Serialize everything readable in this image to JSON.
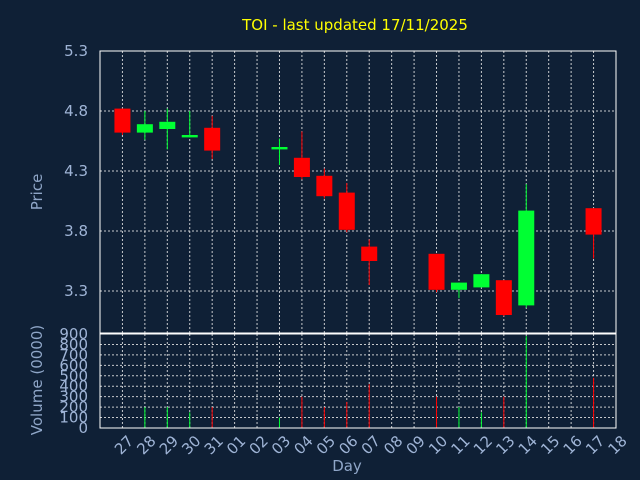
{
  "chart_data": {
    "type": "candlestick",
    "title": "TOI - last updated 17/11/2025",
    "xlabel": "Day",
    "ylabel": "Price",
    "volume_label": "Volume (0000)",
    "grid": true,
    "categories": [
      "27",
      "28",
      "29",
      "30",
      "31",
      "01",
      "02",
      "03",
      "04",
      "05",
      "06",
      "07",
      "08",
      "09",
      "10",
      "11",
      "12",
      "13",
      "14",
      "15",
      "16",
      "17",
      "18"
    ],
    "price_ticks": [
      "3.3",
      "3.8",
      "4.3",
      "4.8",
      "5.3"
    ],
    "price_range": [
      2.95,
      5.3
    ],
    "volume_ticks": [
      "0",
      "100",
      "200",
      "300",
      "400",
      "500",
      "600",
      "700",
      "800",
      "900"
    ],
    "volume_range": [
      0,
      900
    ],
    "colors": {
      "up": "#00ff33",
      "down": "#ff0000",
      "title": "#ffff00",
      "background": "#0f2036"
    },
    "candles": [
      {
        "x": "27",
        "open": 4.82,
        "close": 4.62,
        "high": 4.82,
        "low": 4.6,
        "volume": 0
      },
      {
        "x": "28",
        "open": 4.62,
        "close": 4.69,
        "high": 4.8,
        "low": 4.56,
        "volume": 200
      },
      {
        "x": "29",
        "open": 4.65,
        "close": 4.71,
        "high": 4.82,
        "low": 4.48,
        "volume": 200
      },
      {
        "x": "30",
        "open": 4.58,
        "close": 4.6,
        "high": 4.8,
        "low": 4.58,
        "volume": 150
      },
      {
        "x": "31",
        "open": 4.66,
        "close": 4.47,
        "high": 4.76,
        "low": 4.4,
        "volume": 200
      },
      {
        "x": "03",
        "open": 4.48,
        "close": 4.5,
        "high": 4.57,
        "low": 4.35,
        "volume": 100
      },
      {
        "x": "04",
        "open": 4.41,
        "close": 4.25,
        "high": 4.63,
        "low": 4.23,
        "volume": 300
      },
      {
        "x": "05",
        "open": 4.26,
        "close": 4.09,
        "high": 4.32,
        "low": 4.07,
        "volume": 200
      },
      {
        "x": "06",
        "open": 4.12,
        "close": 3.81,
        "high": 4.2,
        "low": 3.79,
        "volume": 250
      },
      {
        "x": "07",
        "open": 3.67,
        "close": 3.55,
        "high": 3.73,
        "low": 3.35,
        "volume": 420
      },
      {
        "x": "10",
        "open": 3.61,
        "close": 3.31,
        "high": 3.61,
        "low": 3.29,
        "volume": 300
      },
      {
        "x": "11",
        "open": 3.31,
        "close": 3.37,
        "high": 3.37,
        "low": 3.24,
        "volume": 200
      },
      {
        "x": "12",
        "open": 3.33,
        "close": 3.44,
        "high": 3.44,
        "low": 3.33,
        "volume": 150
      },
      {
        "x": "13",
        "open": 3.39,
        "close": 3.1,
        "high": 3.39,
        "low": 3.09,
        "volume": 300
      },
      {
        "x": "14",
        "open": 3.18,
        "close": 3.97,
        "high": 4.19,
        "low": 3.16,
        "volume": 880
      },
      {
        "x": "17",
        "open": 3.99,
        "close": 3.77,
        "high": 3.99,
        "low": 3.57,
        "volume": 480
      }
    ]
  }
}
